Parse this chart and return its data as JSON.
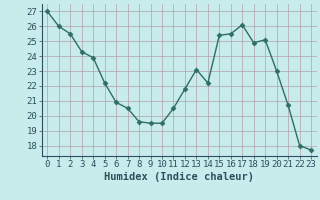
{
  "x": [
    0,
    1,
    2,
    3,
    4,
    5,
    6,
    7,
    8,
    9,
    10,
    11,
    12,
    13,
    14,
    15,
    16,
    17,
    18,
    19,
    20,
    21,
    22,
    23
  ],
  "y": [
    27,
    26,
    25.5,
    24.3,
    23.9,
    22.2,
    20.9,
    20.5,
    19.6,
    19.5,
    19.5,
    20.5,
    21.8,
    23.1,
    22.2,
    25.4,
    25.5,
    26.1,
    24.9,
    25.1,
    23.0,
    20.7,
    18.0,
    17.7
  ],
  "line_color": "#2e6e65",
  "marker": "D",
  "marker_size": 2.5,
  "bg_color": "#c8ecec",
  "grid_color": "#b0a0a8",
  "ylabel_ticks": [
    18,
    19,
    20,
    21,
    22,
    23,
    24,
    25,
    26,
    27
  ],
  "ylim": [
    17.3,
    27.5
  ],
  "xlim": [
    -0.5,
    23.5
  ],
  "xlabel": "Humidex (Indice chaleur)",
  "tick_fontsize": 6.5,
  "label_fontsize": 7.5,
  "line_width": 1.0
}
